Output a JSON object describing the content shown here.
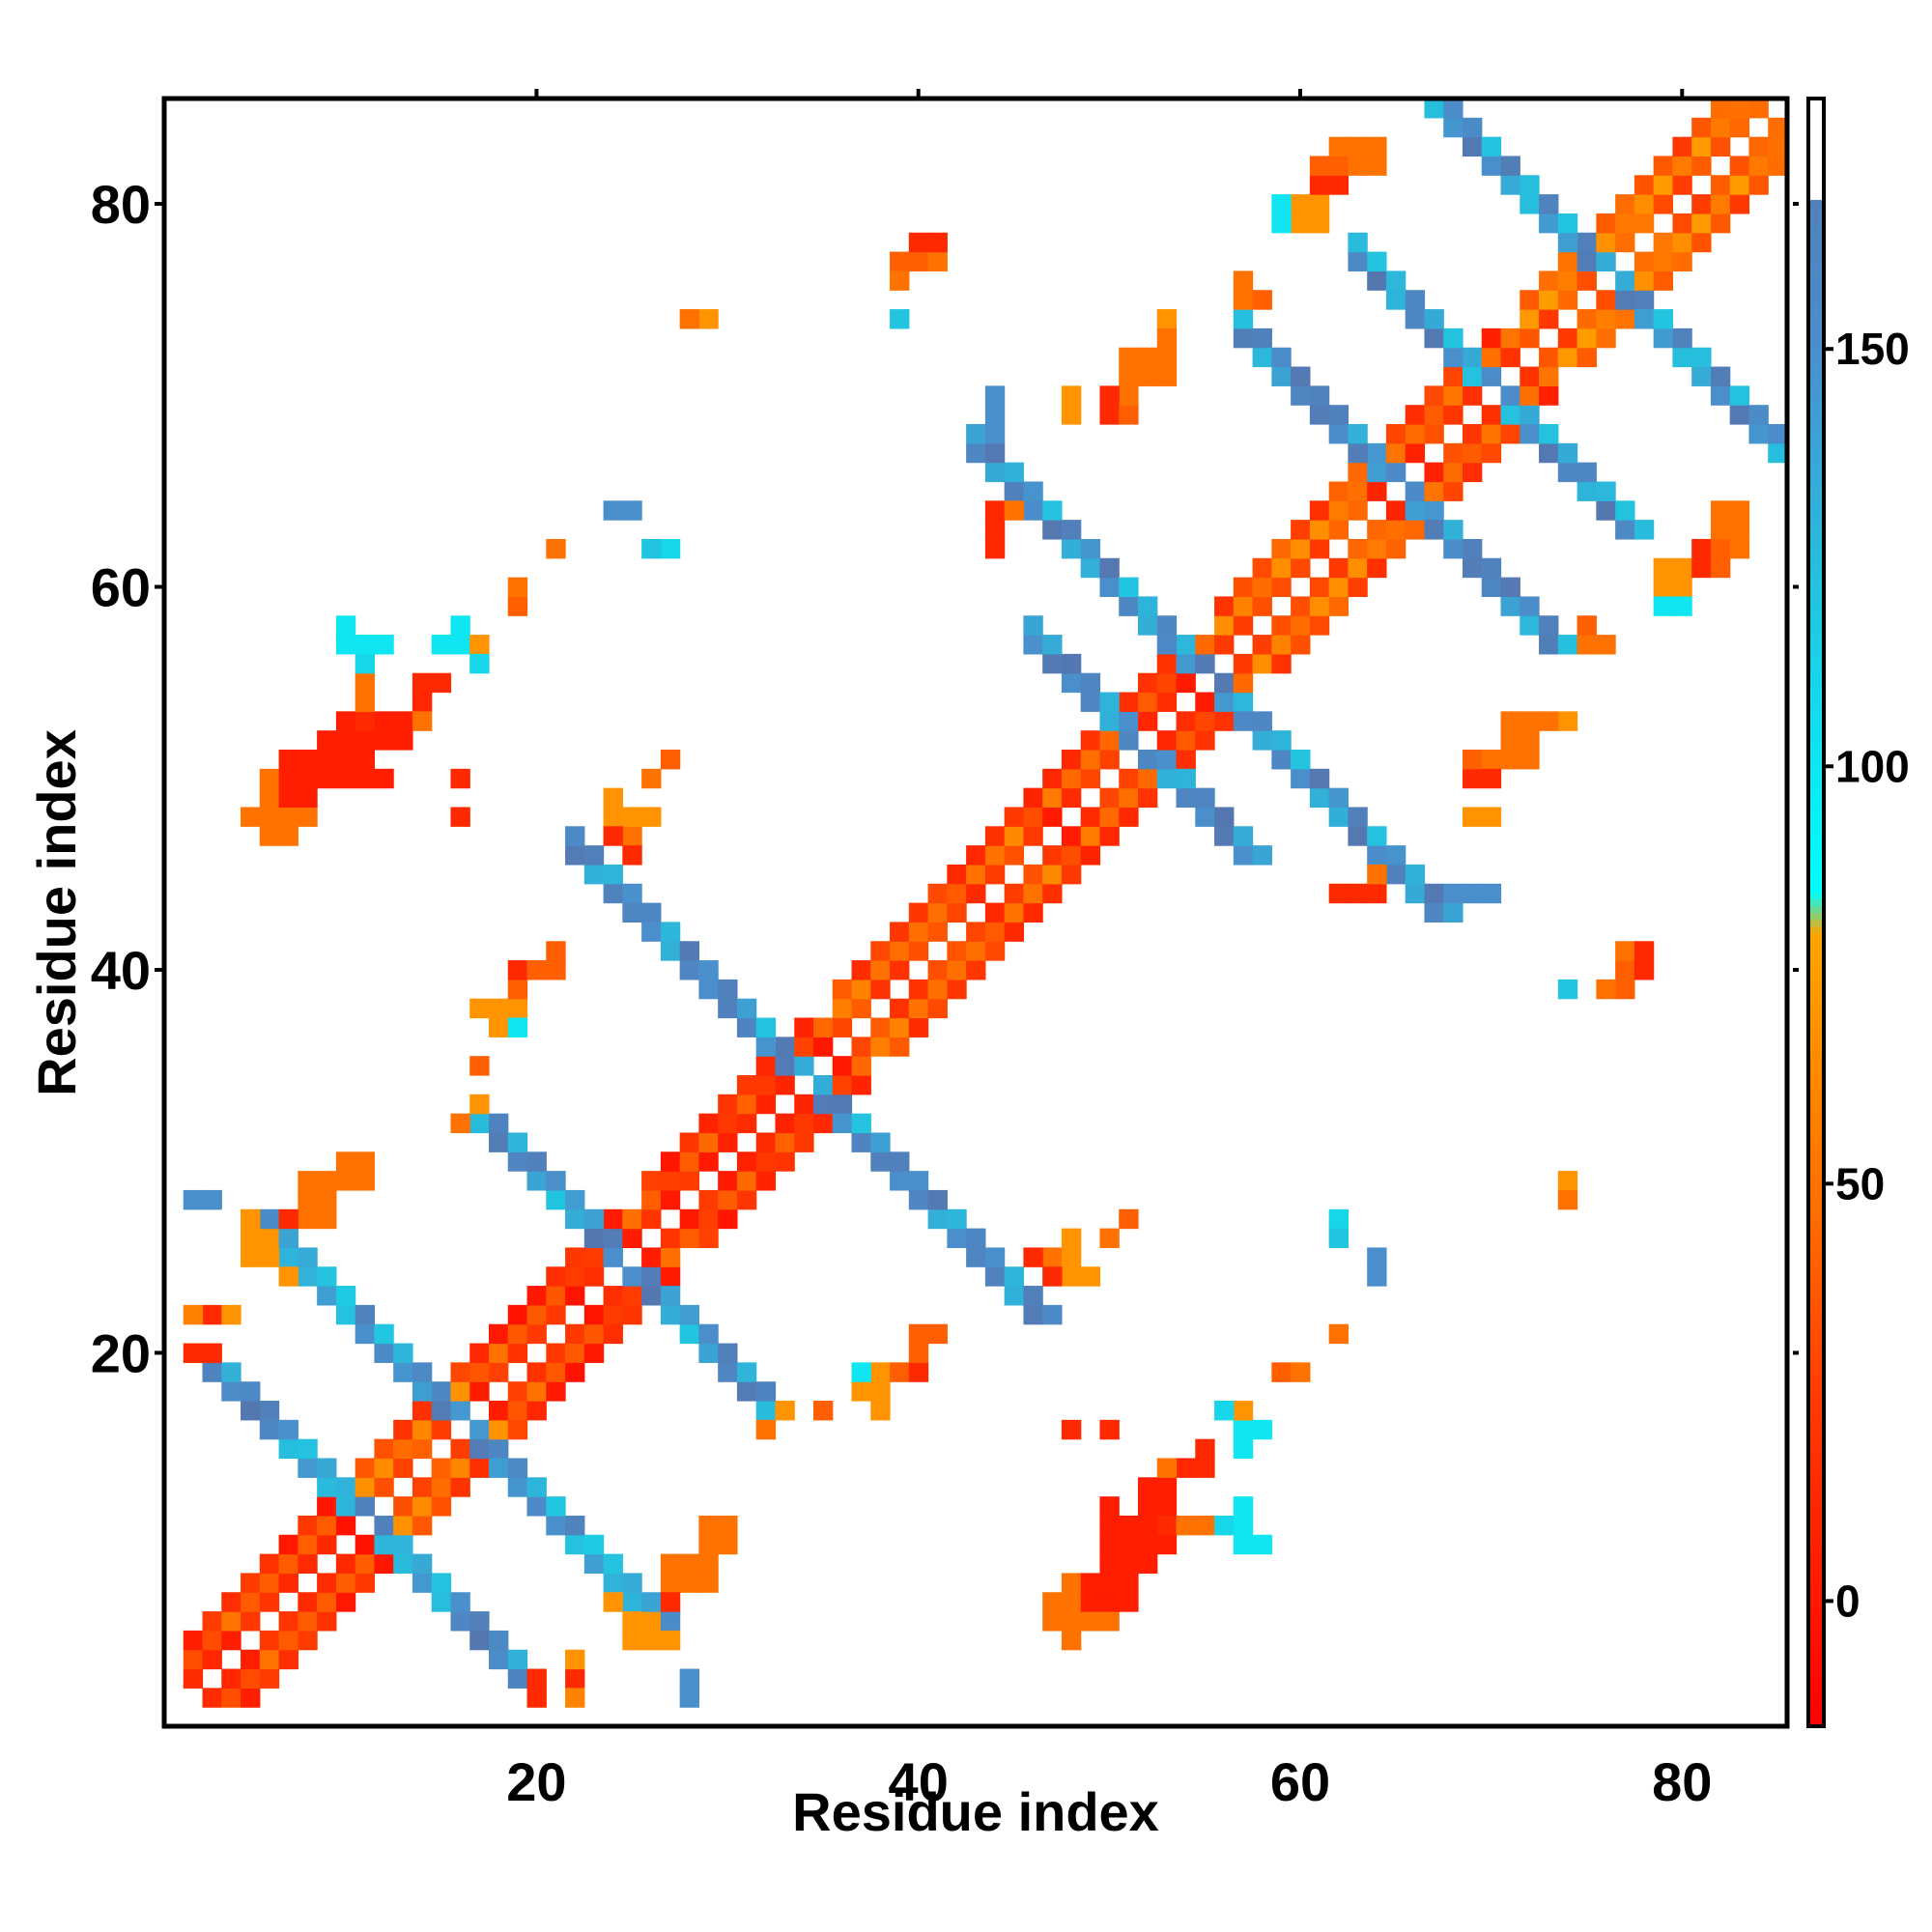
{
  "chart_data": {
    "type": "heatmap",
    "title": "",
    "xlabel": "Residue index",
    "ylabel": "Residue index",
    "xlim": [
      0.5,
      85.5
    ],
    "ylim": [
      0.5,
      85.5
    ],
    "x_ticks": [
      20,
      40,
      60,
      80
    ],
    "y_ticks": [
      20,
      40,
      60,
      80
    ],
    "grid": false,
    "colorbar": {
      "range": [
        -15,
        180
      ],
      "ticks": [
        0,
        50,
        100,
        150
      ],
      "stops": [
        {
          "value": -15,
          "color": "#ff0000"
        },
        {
          "value": 25,
          "color": "#ff3c00"
        },
        {
          "value": 45,
          "color": "#ff6a00"
        },
        {
          "value": 80,
          "color": "#ffa500"
        },
        {
          "value": 85,
          "color": "#00ffff"
        },
        {
          "value": 120,
          "color": "#22c5e0"
        },
        {
          "value": 150,
          "color": "#4a8fcc"
        },
        {
          "value": 180,
          "color": "#5577b0"
        },
        {
          "value": 180.01,
          "color": "#ffffff"
        }
      ]
    },
    "diagonal_bands": [
      {
        "a": 2,
        "b": 12,
        "value": 12
      },
      {
        "a": 11,
        "b": 18,
        "value": 30
      },
      {
        "a": 17,
        "b": 26,
        "value": 12
      },
      {
        "a": 26,
        "b": 36,
        "value": 12
      },
      {
        "a": 36,
        "b": 47,
        "value": 25
      },
      {
        "a": 46,
        "b": 56,
        "value": 15
      },
      {
        "a": 56,
        "b": 65,
        "value": 30
      },
      {
        "a": 64,
        "b": 72,
        "value": 20
      },
      {
        "a": 72,
        "b": 85,
        "value": 38
      }
    ],
    "anti_bands": [
      {
        "s": 22,
        "a": 3,
        "b": 19,
        "value": 150
      },
      {
        "s": 32,
        "a": 6,
        "b": 26,
        "value": 145
      },
      {
        "s": 49,
        "a": 17,
        "b": 32,
        "value": 150
      },
      {
        "s": 68,
        "a": 22,
        "b": 46,
        "value": 150
      },
      {
        "s": 103,
        "a": 46,
        "b": 57,
        "value": 150
      },
      {
        "s": 110,
        "a": 43,
        "b": 65,
        "value": 150
      },
      {
        "s": 130,
        "a": 57,
        "b": 73,
        "value": 150
      },
      {
        "s": 140,
        "a": 63,
        "b": 77,
        "value": 150
      },
      {
        "s": 152,
        "a": 67,
        "b": 85,
        "value": 150
      }
    ],
    "patches": [
      {
        "x": 9,
        "y": 50,
        "value": 5
      },
      {
        "x": 10,
        "y": 50,
        "value": 5
      },
      {
        "x": 11,
        "y": 50,
        "value": 5
      },
      {
        "x": 12,
        "y": 50,
        "value": 5
      },
      {
        "x": 8,
        "y": 51,
        "value": 5
      },
      {
        "x": 9,
        "y": 51,
        "value": 5
      },
      {
        "x": 10,
        "y": 51,
        "value": 5
      },
      {
        "x": 11,
        "y": 51,
        "value": 5
      },
      {
        "x": 9,
        "y": 52,
        "value": 5
      },
      {
        "x": 10,
        "y": 52,
        "value": 5
      },
      {
        "x": 11,
        "y": 52,
        "value": 5
      },
      {
        "x": 12,
        "y": 52,
        "value": 5
      },
      {
        "x": 13,
        "y": 52,
        "value": 5
      },
      {
        "x": 12,
        "y": 53,
        "value": 5
      },
      {
        "x": 13,
        "y": 53,
        "value": 5
      },
      {
        "x": 14,
        "y": 54,
        "value": 10
      },
      {
        "x": 15,
        "y": 55,
        "value": 12
      },
      {
        "x": 7,
        "y": 47,
        "value": 50
      },
      {
        "x": 7,
        "y": 48,
        "value": 50
      },
      {
        "x": 8,
        "y": 48,
        "value": 50
      },
      {
        "x": 6,
        "y": 48,
        "value": 50
      },
      {
        "x": 8,
        "y": 49,
        "value": 50
      },
      {
        "x": 14,
        "y": 53,
        "value": 50
      },
      {
        "x": 14,
        "y": 55,
        "value": 12
      },
      {
        "x": 15,
        "y": 57,
        "value": 100
      },
      {
        "x": 16,
        "y": 57,
        "value": 100
      },
      {
        "x": 17,
        "y": 57,
        "value": 100
      },
      {
        "x": 16,
        "y": 58,
        "value": 100
      },
      {
        "x": 17,
        "y": 56,
        "value": 110
      },
      {
        "x": 48,
        "y": 6,
        "value": 50
      },
      {
        "x": 49,
        "y": 6,
        "value": 50
      },
      {
        "x": 50,
        "y": 6,
        "value": 50
      },
      {
        "x": 47,
        "y": 6,
        "value": 50
      },
      {
        "x": 48,
        "y": 7,
        "value": 50
      },
      {
        "x": 49,
        "y": 7,
        "value": 5
      },
      {
        "x": 50,
        "y": 7,
        "value": 5
      },
      {
        "x": 51,
        "y": 7,
        "value": 5
      },
      {
        "x": 49,
        "y": 8,
        "value": 5
      },
      {
        "x": 50,
        "y": 8,
        "value": 5
      },
      {
        "x": 51,
        "y": 8,
        "value": 5
      },
      {
        "x": 50,
        "y": 9,
        "value": 5
      },
      {
        "x": 51,
        "y": 9,
        "value": 5
      },
      {
        "x": 52,
        "y": 9,
        "value": 5
      },
      {
        "x": 51,
        "y": 10,
        "value": 5
      },
      {
        "x": 52,
        "y": 10,
        "value": 5
      },
      {
        "x": 53,
        "y": 10,
        "value": 5
      },
      {
        "x": 53,
        "y": 11,
        "value": 12
      },
      {
        "x": 54,
        "y": 11,
        "value": 50
      },
      {
        "x": 55,
        "y": 11,
        "value": 50
      },
      {
        "x": 48,
        "y": 5,
        "value": 50
      },
      {
        "x": 56,
        "y": 11,
        "value": 110
      },
      {
        "x": 57,
        "y": 11,
        "value": 100
      },
      {
        "x": 57,
        "y": 12,
        "value": 100
      },
      {
        "x": 58,
        "y": 10,
        "value": 100
      },
      {
        "x": 57,
        "y": 10,
        "value": 100
      },
      {
        "x": 3,
        "y": 28,
        "value": 150
      },
      {
        "x": 3,
        "y": 20,
        "value": 12
      },
      {
        "x": 3,
        "y": 22,
        "value": 70
      },
      {
        "x": 4,
        "y": 22,
        "value": 12
      },
      {
        "x": 6,
        "y": 25,
        "value": 70
      },
      {
        "x": 6,
        "y": 26,
        "value": 70
      },
      {
        "x": 7,
        "y": 24,
        "value": 70
      },
      {
        "x": 8,
        "y": 27,
        "value": 12
      },
      {
        "x": 9,
        "y": 27,
        "value": 50
      },
      {
        "x": 9,
        "y": 28,
        "value": 50
      },
      {
        "x": 10,
        "y": 29,
        "value": 50
      },
      {
        "x": 11,
        "y": 29,
        "value": 50
      },
      {
        "x": 11,
        "y": 30,
        "value": 50
      },
      {
        "x": 16,
        "y": 32,
        "value": 50
      },
      {
        "x": 17,
        "y": 33,
        "value": 70
      },
      {
        "x": 17,
        "y": 35,
        "value": 40
      },
      {
        "x": 18,
        "y": 37,
        "value": 70
      },
      {
        "x": 17,
        "y": 38,
        "value": 70
      },
      {
        "x": 18,
        "y": 38,
        "value": 70
      },
      {
        "x": 19,
        "y": 38,
        "value": 70
      },
      {
        "x": 19,
        "y": 37,
        "value": 100
      },
      {
        "x": 19,
        "y": 39,
        "value": 40
      },
      {
        "x": 19,
        "y": 40,
        "value": 40
      },
      {
        "x": 20,
        "y": 40,
        "value": 50
      },
      {
        "x": 21,
        "y": 40,
        "value": 50
      },
      {
        "x": 21,
        "y": 41,
        "value": 50
      },
      {
        "x": 16,
        "y": 50,
        "value": 12
      },
      {
        "x": 16,
        "y": 48,
        "value": 12
      },
      {
        "x": 19,
        "y": 59,
        "value": 40
      },
      {
        "x": 17,
        "y": 57,
        "value": 70
      },
      {
        "x": 21,
        "y": 62,
        "value": 40
      },
      {
        "x": 27,
        "y": 51,
        "value": 40
      },
      {
        "x": 25,
        "y": 64,
        "value": 150
      },
      {
        "x": 27,
        "y": 62,
        "value": 110
      },
      {
        "x": 29,
        "y": 74,
        "value": 70
      },
      {
        "x": 39,
        "y": 74,
        "value": 110
      },
      {
        "x": 39,
        "y": 77,
        "value": 12
      },
      {
        "x": 40,
        "y": 77,
        "value": 12
      },
      {
        "x": 41,
        "y": 77,
        "value": 50
      },
      {
        "x": 41,
        "y": 78,
        "value": 12
      },
      {
        "x": 39,
        "y": 76,
        "value": 70
      },
      {
        "x": 44,
        "y": 69,
        "value": 150
      },
      {
        "x": 44,
        "y": 70,
        "value": 150
      },
      {
        "x": 44,
        "y": 62,
        "value": 12
      },
      {
        "x": 44,
        "y": 63,
        "value": 12
      },
      {
        "x": 44,
        "y": 64,
        "value": 12
      },
      {
        "x": 45,
        "y": 64,
        "value": 60
      },
      {
        "x": 48,
        "y": 69,
        "value": 70
      },
      {
        "x": 50,
        "y": 69,
        "value": 12
      },
      {
        "x": 51,
        "y": 69,
        "value": 40
      },
      {
        "x": 51,
        "y": 70,
        "value": 40
      },
      {
        "x": 52,
        "y": 71,
        "value": 50
      },
      {
        "x": 53,
        "y": 71,
        "value": 50
      },
      {
        "x": 53,
        "y": 72,
        "value": 50
      },
      {
        "x": 53,
        "y": 74,
        "value": 70
      },
      {
        "x": 57,
        "y": 76,
        "value": 50
      },
      {
        "x": 57,
        "y": 75,
        "value": 50
      },
      {
        "x": 60,
        "y": 79,
        "value": 100
      },
      {
        "x": 60,
        "y": 80,
        "value": 100
      },
      {
        "x": 61,
        "y": 79,
        "value": 70
      },
      {
        "x": 61,
        "y": 80,
        "value": 70
      },
      {
        "x": 62,
        "y": 81,
        "value": 12
      },
      {
        "x": 62,
        "y": 82,
        "value": 50
      },
      {
        "x": 63,
        "y": 82,
        "value": 50
      },
      {
        "x": 64,
        "y": 82,
        "value": 50
      },
      {
        "x": 64,
        "y": 83,
        "value": 50
      },
      {
        "x": 79,
        "y": 59,
        "value": 100
      },
      {
        "x": 80,
        "y": 59,
        "value": 100
      },
      {
        "x": 79,
        "y": 60,
        "value": 70
      },
      {
        "x": 80,
        "y": 60,
        "value": 70
      },
      {
        "x": 81,
        "y": 61,
        "value": 12
      },
      {
        "x": 82,
        "y": 61,
        "value": 40
      },
      {
        "x": 82,
        "y": 62,
        "value": 40
      },
      {
        "x": 83,
        "y": 62,
        "value": 50
      },
      {
        "x": 83,
        "y": 63,
        "value": 50
      },
      {
        "x": 75,
        "y": 58,
        "value": 40
      },
      {
        "x": 71,
        "y": 51,
        "value": 50
      },
      {
        "x": 72,
        "y": 51,
        "value": 50
      },
      {
        "x": 70,
        "y": 51,
        "value": 50
      },
      {
        "x": 70,
        "y": 50,
        "value": 12
      },
      {
        "x": 72,
        "y": 52,
        "value": 50
      },
      {
        "x": 73,
        "y": 53,
        "value": 50
      },
      {
        "x": 72,
        "y": 53,
        "value": 50
      },
      {
        "x": 70,
        "y": 48,
        "value": 70
      },
      {
        "x": 74,
        "y": 53,
        "value": 70
      },
      {
        "x": 62,
        "y": 44,
        "value": 12
      },
      {
        "x": 63,
        "y": 44,
        "value": 12
      },
      {
        "x": 64,
        "y": 44,
        "value": 12
      },
      {
        "x": 64,
        "y": 45,
        "value": 50
      },
      {
        "x": 68,
        "y": 44,
        "value": 150
      },
      {
        "x": 70,
        "y": 44,
        "value": 150
      },
      {
        "x": 74,
        "y": 39,
        "value": 120
      },
      {
        "x": 76,
        "y": 39,
        "value": 50
      },
      {
        "x": 77,
        "y": 39,
        "value": 40
      },
      {
        "x": 77,
        "y": 40,
        "value": 40
      },
      {
        "x": 78,
        "y": 40,
        "value": 12
      },
      {
        "x": 74,
        "y": 28,
        "value": 50
      },
      {
        "x": 50,
        "y": 26,
        "value": 50
      },
      {
        "x": 62,
        "y": 26,
        "value": 120
      },
      {
        "x": 64,
        "y": 24,
        "value": 150
      },
      {
        "x": 62,
        "y": 21,
        "value": 50
      },
      {
        "x": 60,
        "y": 19,
        "value": 50
      },
      {
        "x": 57,
        "y": 17,
        "value": 70
      },
      {
        "x": 47,
        "y": 25,
        "value": 50
      },
      {
        "x": 48,
        "y": 25,
        "value": 70
      },
      {
        "x": 48,
        "y": 26,
        "value": 70
      },
      {
        "x": 49,
        "y": 24,
        "value": 70
      },
      {
        "x": 48,
        "y": 24,
        "value": 70
      },
      {
        "x": 46,
        "y": 25,
        "value": 12
      },
      {
        "x": 47,
        "y": 24,
        "value": 12
      },
      {
        "x": 37,
        "y": 19,
        "value": 100
      },
      {
        "x": 38,
        "y": 19,
        "value": 70
      },
      {
        "x": 38,
        "y": 18,
        "value": 70
      },
      {
        "x": 37,
        "y": 18,
        "value": 70
      },
      {
        "x": 38,
        "y": 17,
        "value": 70
      },
      {
        "x": 39,
        "y": 19,
        "value": 40
      },
      {
        "x": 40,
        "y": 19,
        "value": 12
      },
      {
        "x": 40,
        "y": 20,
        "value": 40
      },
      {
        "x": 40,
        "y": 21,
        "value": 40
      },
      {
        "x": 41,
        "y": 21,
        "value": 40
      },
      {
        "x": 35,
        "y": 17,
        "value": 40
      },
      {
        "x": 27,
        "y": 8,
        "value": 50
      },
      {
        "x": 28,
        "y": 8,
        "value": 50
      },
      {
        "x": 29,
        "y": 8,
        "value": 50
      },
      {
        "x": 29,
        "y": 9,
        "value": 50
      },
      {
        "x": 29,
        "y": 10,
        "value": 50
      },
      {
        "x": 30,
        "y": 10,
        "value": 50
      },
      {
        "x": 27,
        "y": 7,
        "value": 12
      },
      {
        "x": 26,
        "y": 5,
        "value": 70
      },
      {
        "x": 27,
        "y": 5,
        "value": 70
      },
      {
        "x": 25,
        "y": 5,
        "value": 70
      },
      {
        "x": 28,
        "y": 2,
        "value": 150
      },
      {
        "x": 20,
        "y": 2,
        "value": 12
      },
      {
        "x": 22,
        "y": 2,
        "value": 60
      },
      {
        "x": 22,
        "y": 3,
        "value": 12
      },
      {
        "x": 22,
        "y": 4,
        "value": 70
      }
    ]
  }
}
